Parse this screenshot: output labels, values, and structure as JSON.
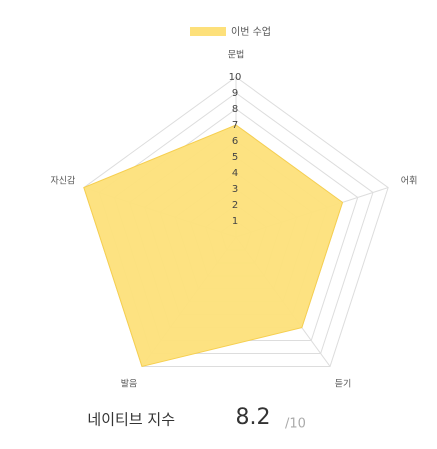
{
  "chart_data": {
    "type": "radar",
    "categories": [
      "문법",
      "어휘",
      "듣기",
      "발음",
      "자신감"
    ],
    "series": [
      {
        "name": "이번 수업",
        "color": "#fde07a",
        "values": [
          7,
          7,
          7,
          10,
          10
        ]
      }
    ],
    "rlim": [
      0,
      10
    ],
    "rticks": [
      1,
      2,
      3,
      4,
      5,
      6,
      7,
      8,
      9,
      10
    ],
    "legend": "top",
    "footer": {
      "label": "네이티브 지수",
      "score": "8.2",
      "max": "/10"
    }
  }
}
